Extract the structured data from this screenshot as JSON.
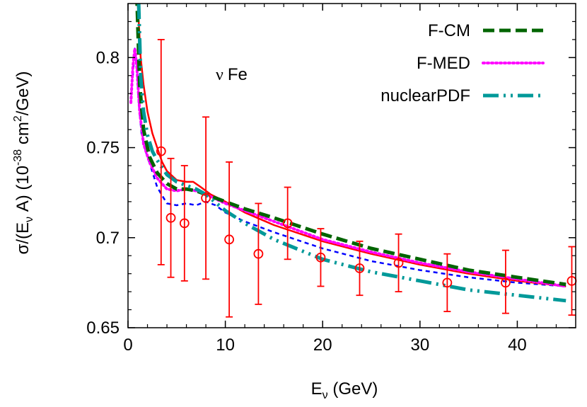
{
  "chart_data": {
    "type": "line",
    "annotation": {
      "nu": "ν",
      "target": "Fe"
    },
    "xlabel": {
      "main": "E",
      "sub": "ν",
      "rest": " (GeV)"
    },
    "ylabel": {
      "p1": "σ/(E",
      "sub": "ν",
      "p2": " A)  (10",
      "sup1": "-38",
      "p3": " cm",
      "sup2": "2",
      "p4": "/GeV)"
    },
    "xlim": [
      0,
      46
    ],
    "ylim": [
      0.65,
      0.83
    ],
    "x_ticks": [
      0,
      10,
      20,
      30,
      40
    ],
    "x_tick_labels": [
      "0",
      "10",
      "20",
      "30",
      "40"
    ],
    "y_ticks": [
      0.65,
      0.7,
      0.75,
      0.8
    ],
    "y_tick_labels": [
      "0.65",
      "0.7",
      "0.75",
      "0.8"
    ],
    "grid": false,
    "legend_position": "top-right",
    "series": [
      {
        "name": "F-CM",
        "color": "#006400",
        "style": "dashed",
        "legend": true,
        "x": [
          0.9,
          1.2,
          1.6,
          2.2,
          3,
          4,
          5,
          6,
          7,
          8,
          10,
          12,
          15,
          20,
          25,
          30,
          35,
          40,
          45
        ],
        "y": [
          0.835,
          0.785,
          0.76,
          0.745,
          0.736,
          0.73,
          0.727,
          0.727,
          0.726,
          0.724,
          0.72,
          0.716,
          0.711,
          0.702,
          0.694,
          0.688,
          0.682,
          0.678,
          0.674
        ]
      },
      {
        "name": "F-MED",
        "color": "#FF00FF",
        "style": "dotted",
        "legend": true,
        "x": [
          0.3,
          0.5,
          0.7,
          0.9,
          1.2,
          1.6,
          2.2,
          3,
          4,
          5,
          6,
          7,
          8,
          10,
          12,
          15,
          20,
          25,
          30,
          35,
          40,
          45
        ],
        "y": [
          0.775,
          0.795,
          0.805,
          0.795,
          0.77,
          0.752,
          0.742,
          0.733,
          0.727,
          0.726,
          0.727,
          0.726,
          0.724,
          0.719,
          0.715,
          0.709,
          0.699,
          0.692,
          0.686,
          0.681,
          0.677,
          0.673
        ]
      },
      {
        "name": "nuclearPDF",
        "color": "#009999",
        "style": "dashdotdot",
        "legend": true,
        "x": [
          1.1,
          1.3,
          1.6,
          2.0,
          2.5,
          3,
          4,
          5,
          6,
          7,
          8,
          10,
          12,
          15,
          20,
          25,
          30,
          35,
          40,
          45
        ],
        "y": [
          0.83,
          0.79,
          0.77,
          0.757,
          0.748,
          0.743,
          0.735,
          0.731,
          0.729,
          0.727,
          0.724,
          0.715,
          0.708,
          0.699,
          0.688,
          0.681,
          0.676,
          0.671,
          0.668,
          0.665
        ]
      },
      {
        "name": "",
        "color": "#FF0000",
        "style": "solid",
        "legend": false,
        "x": [
          1.0,
          1.3,
          1.6,
          2.0,
          2.5,
          3,
          3.5,
          4,
          5,
          6,
          6.7,
          7.5,
          8.5,
          10,
          12,
          15,
          20,
          25,
          30,
          35,
          40,
          45
        ],
        "y": [
          0.83,
          0.8,
          0.785,
          0.77,
          0.758,
          0.75,
          0.742,
          0.737,
          0.732,
          0.731,
          0.731,
          0.728,
          0.724,
          0.72,
          0.714,
          0.707,
          0.698,
          0.691,
          0.685,
          0.68,
          0.676,
          0.673
        ]
      },
      {
        "name": "",
        "color": "#0000FF",
        "style": "short-dashed",
        "legend": false,
        "x": [
          0.5,
          0.7,
          0.9,
          1.1,
          1.4,
          1.8,
          2.3,
          3,
          4,
          5,
          6,
          7,
          8,
          9,
          10,
          12,
          15,
          20,
          25,
          30,
          35,
          40,
          45
        ],
        "y": [
          0.79,
          0.805,
          0.795,
          0.775,
          0.757,
          0.748,
          0.74,
          0.728,
          0.719,
          0.718,
          0.719,
          0.718,
          0.72,
          0.718,
          0.714,
          0.709,
          0.703,
          0.694,
          0.687,
          0.682,
          0.678,
          0.675,
          0.673
        ]
      }
    ],
    "data_points": {
      "color": "#FF0000",
      "x": [
        3.4,
        4.4,
        5.8,
        8.0,
        10.4,
        13.4,
        16.4,
        19.8,
        23.8,
        27.8,
        32.8,
        38.8,
        45.6
      ],
      "y": [
        0.748,
        0.711,
        0.708,
        0.722,
        0.699,
        0.691,
        0.708,
        0.689,
        0.683,
        0.686,
        0.675,
        0.675,
        0.676
      ],
      "err_low": [
        0.685,
        0.678,
        0.676,
        0.677,
        0.656,
        0.663,
        0.688,
        0.673,
        0.668,
        0.67,
        0.659,
        0.658,
        0.657
      ],
      "err_high": [
        0.81,
        0.744,
        0.74,
        0.767,
        0.742,
        0.719,
        0.728,
        0.705,
        0.698,
        0.702,
        0.691,
        0.693,
        0.695
      ]
    }
  }
}
